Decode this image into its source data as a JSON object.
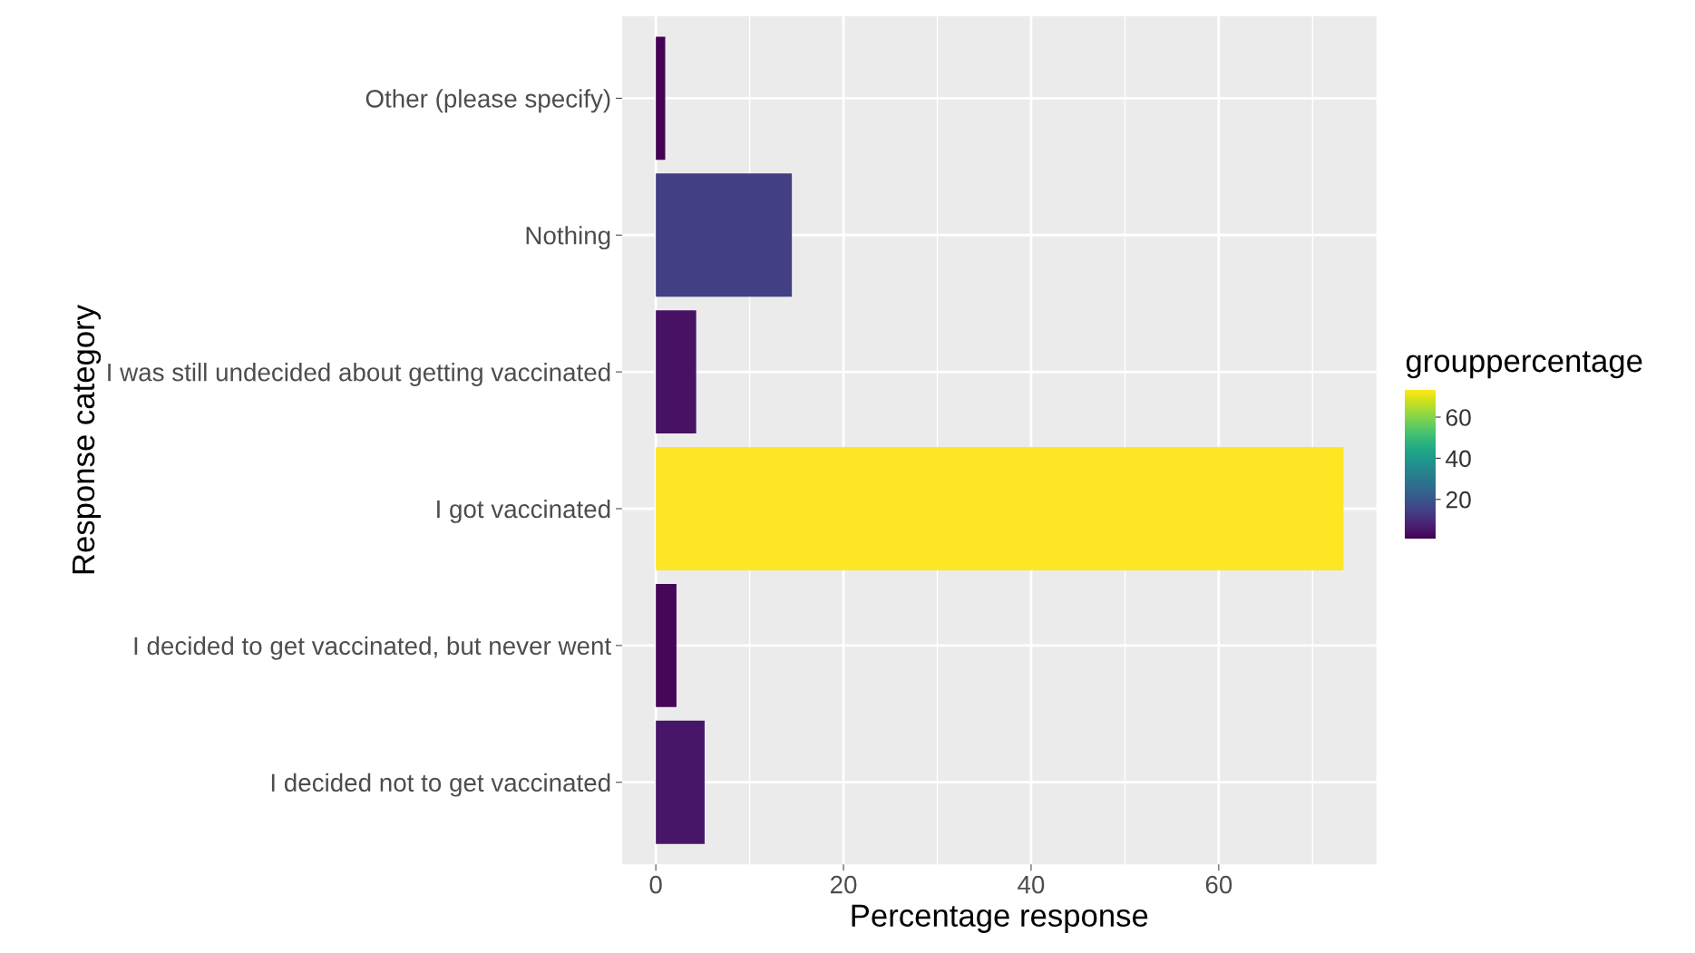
{
  "chart_data": {
    "type": "bar",
    "orientation": "horizontal",
    "categories": [
      "Other (please specify)",
      "Nothing",
      "I was still undecided about getting vaccinated",
      "I got vaccinated",
      "I decided to get vaccinated, but never went",
      "I decided not to get vaccinated"
    ],
    "values": [
      1.0,
      14.5,
      4.3,
      73.3,
      2.2,
      5.2
    ],
    "cvalues": [
      1.0,
      14.5,
      4.3,
      73.3,
      2.2,
      5.2
    ],
    "clim": [
      1.0,
      73.3
    ],
    "cticks": [
      20,
      40,
      60
    ],
    "clabel": "grouppercentage",
    "xlabel": "Percentage response",
    "ylabel": "Response category",
    "xlim": [
      -3.6,
      76.8
    ],
    "xticks": [
      0,
      20,
      40,
      60
    ],
    "grid": true
  }
}
